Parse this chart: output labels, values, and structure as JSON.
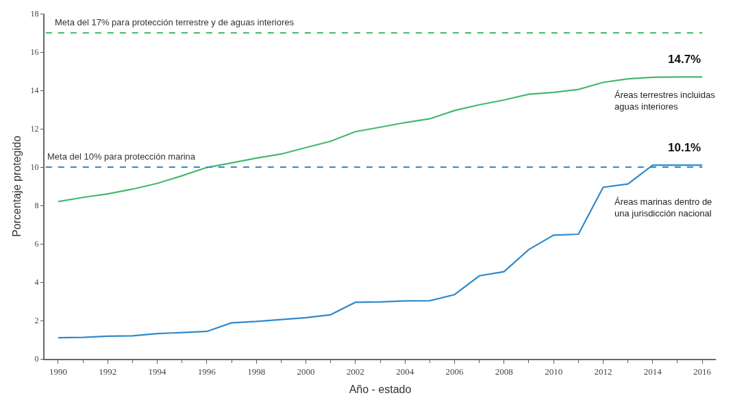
{
  "chart_data": {
    "type": "line",
    "xlabel": "Año - estado",
    "ylabel": "Porcentaje protegido",
    "x": [
      1990,
      1991,
      1992,
      1993,
      1994,
      1995,
      1996,
      1997,
      1998,
      1999,
      2000,
      2001,
      2002,
      2003,
      2004,
      2005,
      2006,
      2007,
      2008,
      2009,
      2010,
      2011,
      2012,
      2013,
      2014,
      2015,
      2016
    ],
    "series": [
      {
        "name": "Áreas terrestres incluidas\naguas interiores",
        "color": "#45b86d",
        "values": [
          8.2,
          8.42,
          8.6,
          8.85,
          9.15,
          9.55,
          9.98,
          10.22,
          10.47,
          10.68,
          11.02,
          11.35,
          11.85,
          12.08,
          12.32,
          12.52,
          12.95,
          13.25,
          13.5,
          13.8,
          13.9,
          14.05,
          14.42,
          14.6,
          14.68,
          14.7,
          14.7
        ]
      },
      {
        "name": "Áreas marinas dentro de\nuna jurisdicción nacional",
        "color": "#2f89cc",
        "values": [
          1.1,
          1.12,
          1.18,
          1.2,
          1.32,
          1.37,
          1.43,
          1.88,
          1.95,
          2.05,
          2.15,
          2.3,
          2.95,
          2.97,
          3.02,
          3.03,
          3.35,
          4.33,
          4.55,
          5.7,
          6.45,
          6.5,
          8.95,
          9.12,
          10.1,
          10.1,
          10.1
        ]
      }
    ],
    "annotations": [
      {
        "text": "14.7%",
        "x": 2016,
        "y": 14.7
      },
      {
        "text": "10.1%",
        "x": 2016,
        "y": 10.1
      }
    ],
    "ref_lines": [
      {
        "axis": "y",
        "value": 17,
        "label": "Meta del 17% para protección terrestre y de aguas interiores",
        "color": "#45b86d",
        "line_style": "dashed"
      },
      {
        "axis": "y",
        "value": 10,
        "label": "Meta del 10% para protección marina",
        "color": "#2f89cc",
        "line_style": "dashed"
      }
    ],
    "xlim": [
      1989.45,
      2016.55
    ],
    "ylim": [
      0,
      18
    ],
    "xticks": [
      1990,
      1992,
      1994,
      1996,
      1998,
      2000,
      2002,
      2004,
      2006,
      2008,
      2010,
      2012,
      2014,
      2016
    ],
    "yticks": [
      0,
      2,
      4,
      6,
      8,
      10,
      12,
      14,
      16,
      18
    ],
    "marker": "none",
    "line_style": "solid"
  }
}
